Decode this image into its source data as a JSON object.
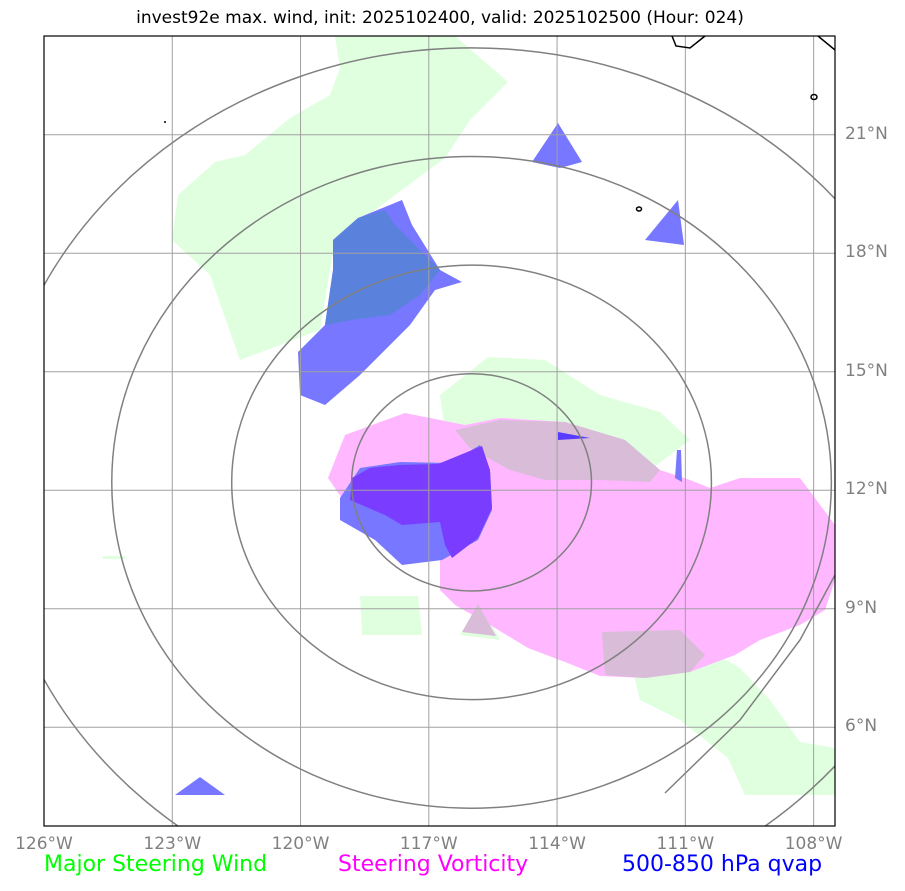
{
  "title": "invest92e max. wind, init: 2025102400, valid: 2025102500 (Hour: 024)",
  "map": {
    "extent": {
      "lon_min": -126,
      "lon_max": -107.5,
      "lat_min": 3.5,
      "lat_max": 23.5
    },
    "lon_ticks": [
      {
        "lon": -126,
        "label": "126°W"
      },
      {
        "lon": -123,
        "label": "123°W"
      },
      {
        "lon": -120,
        "label": "120°W"
      },
      {
        "lon": -117,
        "label": "117°W"
      },
      {
        "lon": -114,
        "label": "114°W"
      },
      {
        "lon": -111,
        "label": "111°W"
      },
      {
        "lon": -108,
        "label": "108°W"
      }
    ],
    "lat_ticks": [
      {
        "lat": 21,
        "label": "21°N"
      },
      {
        "lat": 18,
        "label": "18°N"
      },
      {
        "lat": 15,
        "label": "15°N"
      },
      {
        "lat": 12,
        "label": "12°N"
      },
      {
        "lat": 9,
        "label": "9°N"
      },
      {
        "lat": 6,
        "label": "6°N"
      }
    ],
    "range_rings": {
      "center": {
        "lon": -116,
        "lat": 12.2
      },
      "radii_deg": [
        2.75,
        5.5,
        8.25,
        11.0
      ]
    }
  },
  "legend": [
    {
      "label": "Major Steering Wind",
      "color": "#00ff00"
    },
    {
      "label": "Steering Vorticity",
      "color": "#ff00ff"
    },
    {
      "label": "500-850 hPa qvap",
      "color": "#0000ff"
    }
  ],
  "colors": {
    "steering_wind_fill": "#dfffdf",
    "vorticity_fill": "#ffb8ff",
    "qvap_fill": "#7777ff",
    "qvap_dense_fill": "#7a3cff",
    "grid": "#a0a0a0",
    "ring": "#808080"
  }
}
